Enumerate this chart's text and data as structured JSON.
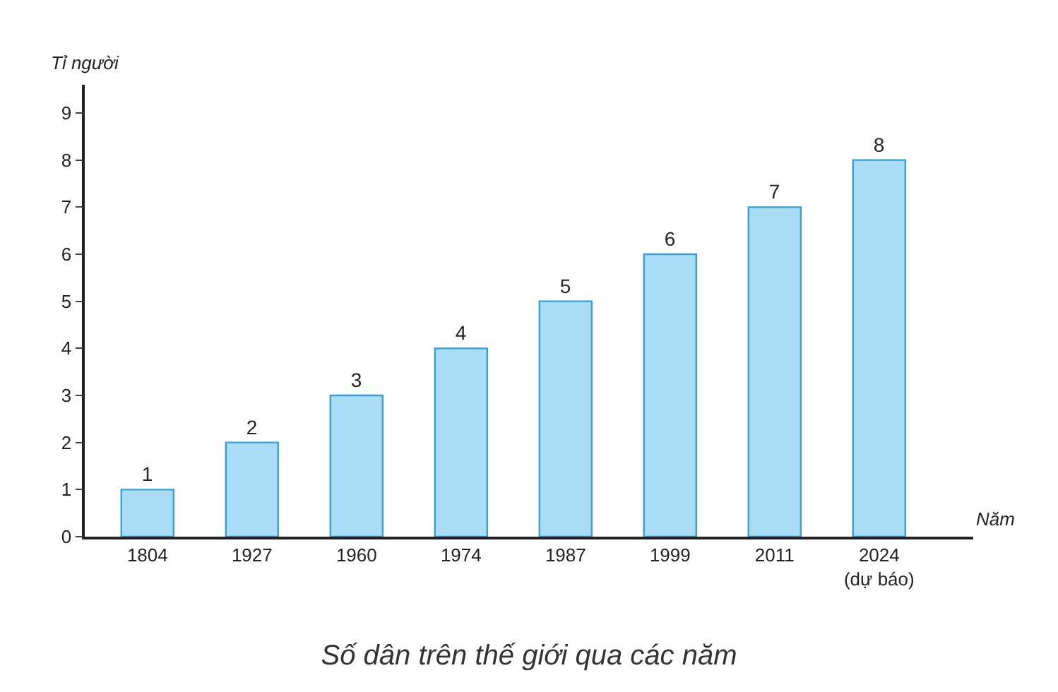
{
  "chart_data": {
    "type": "bar",
    "title": "Số dân trên thế giới qua các năm",
    "xlabel": "Năm",
    "ylabel": "Tỉ người",
    "categories": [
      "1804",
      "1927",
      "1960",
      "1974",
      "1987",
      "1999",
      "2011",
      "2024\n(dự báo)"
    ],
    "values": [
      1,
      2,
      3,
      4,
      5,
      6,
      7,
      8
    ],
    "color": "#a9ddf6",
    "ylim": [
      0,
      9.6
    ],
    "yticks": [
      0,
      1,
      2,
      3,
      4,
      5,
      6,
      7,
      8,
      9
    ],
    "data_labels": true
  }
}
